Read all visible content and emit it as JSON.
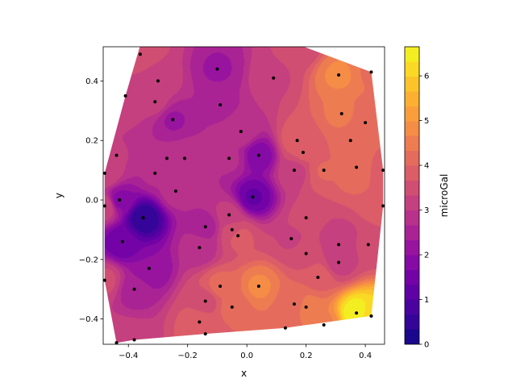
{
  "chart_data": {
    "type": "heatmap",
    "style": "filled tricontour of scattered stations with station markers",
    "xlabel": "x",
    "ylabel": "y",
    "xlim": [
      -0.485,
      0.465
    ],
    "ylim": [
      -0.485,
      0.515
    ],
    "xticks": [
      -0.4,
      -0.2,
      0.0,
      0.2,
      0.4
    ],
    "xtick_labels": [
      "−0.4",
      "−0.2",
      "0.0",
      "0.2",
      "0.4"
    ],
    "yticks": [
      -0.4,
      -0.2,
      0.0,
      0.2,
      0.4
    ],
    "ytick_labels": [
      "−0.4",
      "−0.2",
      "0.0",
      "0.2",
      "0.4"
    ],
    "colorbar": {
      "label": "microGal",
      "range": [
        0,
        6.65
      ],
      "ticks": [
        0,
        1,
        2,
        3,
        4,
        5,
        6
      ],
      "tick_labels": [
        "0",
        "1",
        "2",
        "3",
        "4",
        "5",
        "6"
      ],
      "colormap": "plasma",
      "levels": 20
    },
    "grid": false,
    "points": [
      {
        "x": -0.36,
        "y": 0.52,
        "v": 3.5
      },
      {
        "x": -0.36,
        "y": 0.49,
        "v": 3.4
      },
      {
        "x": -0.1,
        "y": 0.44,
        "v": 2.3
      },
      {
        "x": 0.09,
        "y": 0.41,
        "v": 3.3
      },
      {
        "x": 0.18,
        "y": 0.52,
        "v": 3.4
      },
      {
        "x": 0.31,
        "y": 0.42,
        "v": 4.7
      },
      {
        "x": 0.42,
        "y": 0.43,
        "v": 4.3
      },
      {
        "x": -0.41,
        "y": 0.35,
        "v": 3.3
      },
      {
        "x": -0.3,
        "y": 0.4,
        "v": 3.2
      },
      {
        "x": -0.31,
        "y": 0.33,
        "v": 3.1
      },
      {
        "x": -0.09,
        "y": 0.32,
        "v": 2.6
      },
      {
        "x": 0.32,
        "y": 0.29,
        "v": 4.4
      },
      {
        "x": -0.25,
        "y": 0.27,
        "v": 2.3
      },
      {
        "x": 0.4,
        "y": 0.26,
        "v": 4.0
      },
      {
        "x": -0.02,
        "y": 0.23,
        "v": 2.9
      },
      {
        "x": 0.17,
        "y": 0.2,
        "v": 3.9
      },
      {
        "x": 0.35,
        "y": 0.2,
        "v": 4.2
      },
      {
        "x": 0.19,
        "y": 0.16,
        "v": 3.7
      },
      {
        "x": -0.44,
        "y": 0.15,
        "v": 3.0
      },
      {
        "x": -0.27,
        "y": 0.14,
        "v": 2.7
      },
      {
        "x": -0.21,
        "y": 0.14,
        "v": 2.9
      },
      {
        "x": -0.06,
        "y": 0.14,
        "v": 2.7
      },
      {
        "x": 0.04,
        "y": 0.15,
        "v": 1.8
      },
      {
        "x": 0.37,
        "y": 0.11,
        "v": 4.3
      },
      {
        "x": -0.48,
        "y": 0.09,
        "v": 3.3
      },
      {
        "x": -0.31,
        "y": 0.09,
        "v": 2.7
      },
      {
        "x": 0.16,
        "y": 0.1,
        "v": 3.2
      },
      {
        "x": 0.26,
        "y": 0.1,
        "v": 4.0
      },
      {
        "x": 0.46,
        "y": 0.1,
        "v": 3.8
      },
      {
        "x": -0.24,
        "y": 0.03,
        "v": 2.8
      },
      {
        "x": 0.02,
        "y": 0.01,
        "v": 1.3
      },
      {
        "x": -0.43,
        "y": 0.0,
        "v": 1.9
      },
      {
        "x": -0.35,
        "y": -0.06,
        "v": 0.4
      },
      {
        "x": -0.06,
        "y": -0.05,
        "v": 3.1
      },
      {
        "x": 0.2,
        "y": -0.06,
        "v": 3.4
      },
      {
        "x": -0.48,
        "y": -0.02,
        "v": 3.3
      },
      {
        "x": 0.46,
        "y": -0.02,
        "v": 3.9
      },
      {
        "x": -0.14,
        "y": -0.09,
        "v": 2.5
      },
      {
        "x": -0.05,
        "y": -0.1,
        "v": 3.4
      },
      {
        "x": -0.03,
        "y": -0.12,
        "v": 3.8
      },
      {
        "x": -0.42,
        "y": -0.14,
        "v": 1.4
      },
      {
        "x": 0.15,
        "y": -0.13,
        "v": 3.3
      },
      {
        "x": -0.16,
        "y": -0.16,
        "v": 2.8
      },
      {
        "x": 0.31,
        "y": -0.15,
        "v": 3.0
      },
      {
        "x": 0.41,
        "y": -0.15,
        "v": 3.4
      },
      {
        "x": 0.2,
        "y": -0.18,
        "v": 3.5
      },
      {
        "x": -0.33,
        "y": -0.23,
        "v": 2.0
      },
      {
        "x": 0.31,
        "y": -0.21,
        "v": 3.2
      },
      {
        "x": -0.09,
        "y": -0.29,
        "v": 4.1
      },
      {
        "x": 0.04,
        "y": -0.29,
        "v": 4.7
      },
      {
        "x": 0.24,
        "y": -0.26,
        "v": 3.9
      },
      {
        "x": -0.38,
        "y": -0.3,
        "v": 2.5
      },
      {
        "x": -0.48,
        "y": -0.27,
        "v": 3.4
      },
      {
        "x": -0.14,
        "y": -0.34,
        "v": 3.5
      },
      {
        "x": 0.16,
        "y": -0.35,
        "v": 4.0
      },
      {
        "x": -0.05,
        "y": -0.36,
        "v": 4.1
      },
      {
        "x": 0.2,
        "y": -0.36,
        "v": 4.5
      },
      {
        "x": 0.37,
        "y": -0.38,
        "v": 6.6
      },
      {
        "x": 0.42,
        "y": -0.39,
        "v": 6.0
      },
      {
        "x": -0.16,
        "y": -0.41,
        "v": 3.8
      },
      {
        "x": 0.26,
        "y": -0.42,
        "v": 4.6
      },
      {
        "x": 0.13,
        "y": -0.43,
        "v": 4.2
      },
      {
        "x": -0.14,
        "y": -0.45,
        "v": 3.9
      },
      {
        "x": -0.38,
        "y": -0.47,
        "v": 3.1
      },
      {
        "x": -0.44,
        "y": -0.48,
        "v": 3.3
      }
    ],
    "hull": [
      [
        -0.48,
        0.09
      ],
      [
        -0.41,
        0.35
      ],
      [
        -0.36,
        0.52
      ],
      [
        0.18,
        0.52
      ],
      [
        0.42,
        0.43
      ],
      [
        0.46,
        0.1
      ],
      [
        0.46,
        -0.02
      ],
      [
        0.42,
        -0.39
      ],
      [
        0.13,
        -0.43
      ],
      [
        -0.14,
        -0.45
      ],
      [
        -0.38,
        -0.47
      ],
      [
        -0.44,
        -0.48
      ],
      [
        -0.48,
        -0.27
      ],
      [
        -0.48,
        -0.02
      ]
    ]
  }
}
